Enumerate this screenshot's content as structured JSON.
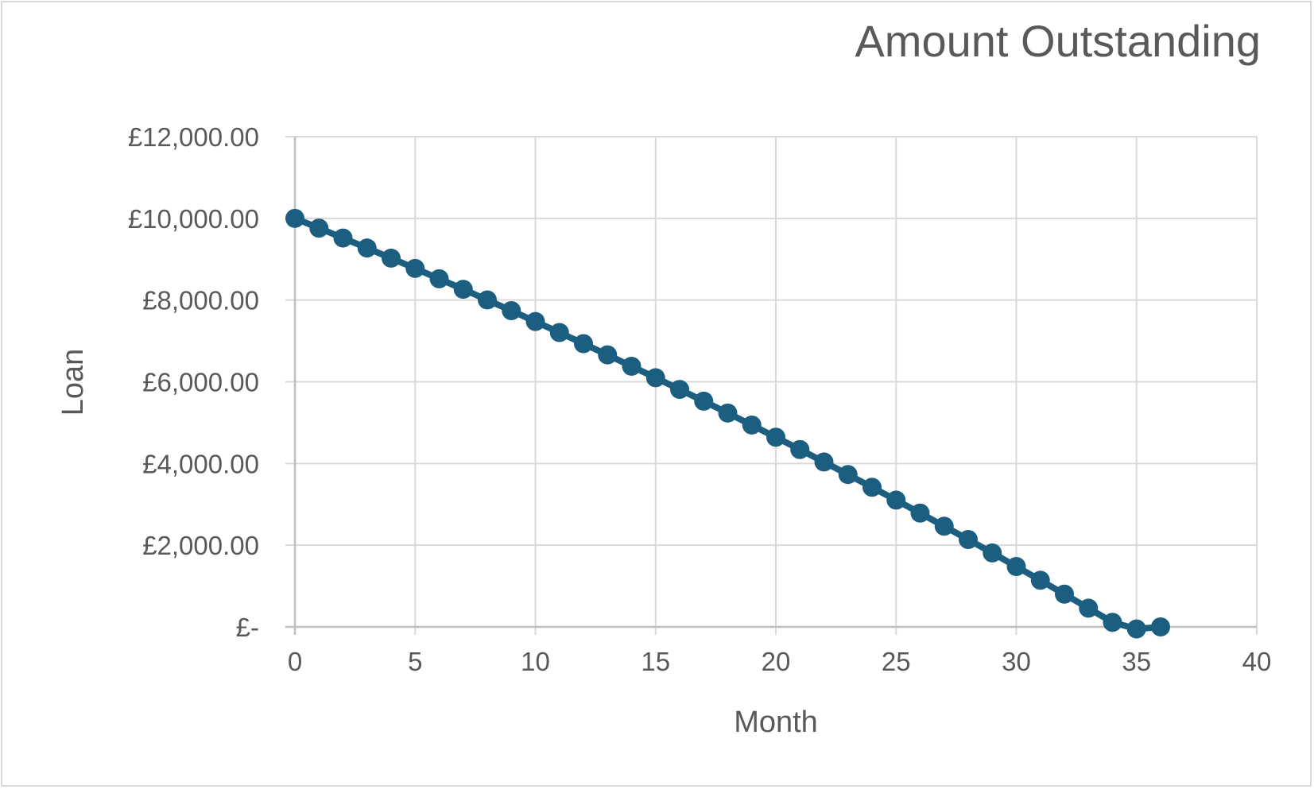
{
  "chart_data": {
    "type": "scatter",
    "title": "Amount Outstanding",
    "xlabel": "Month",
    "ylabel": "Loan",
    "xlim": [
      0,
      40
    ],
    "ylim": [
      0,
      12000
    ],
    "x_ticks": [
      0,
      5,
      10,
      15,
      20,
      25,
      30,
      35,
      40
    ],
    "x_tick_labels": [
      "0",
      "5",
      "10",
      "15",
      "20",
      "25",
      "30",
      "35",
      "40"
    ],
    "y_ticks": [
      0,
      2000,
      4000,
      6000,
      8000,
      10000,
      12000
    ],
    "y_tick_labels": [
      "£-",
      "£2,000.00",
      "£4,000.00",
      "£6,000.00",
      "£8,000.00",
      "£10,000.00",
      "£12,000.00"
    ],
    "grid": true,
    "legend": "none",
    "series": [
      {
        "color": "#1b5e80",
        "markers": true,
        "line": true,
        "x": [
          0,
          1,
          2,
          3,
          4,
          5,
          6,
          7,
          8,
          9,
          10,
          11,
          12,
          13,
          14,
          15,
          16,
          17,
          18,
          19,
          20,
          21,
          22,
          23,
          24,
          25,
          26,
          27,
          28,
          29,
          30,
          31,
          32,
          33,
          34,
          35,
          36
        ],
        "y": [
          10000,
          9761,
          9519,
          9274,
          9026,
          8775,
          8521,
          8264,
          8004,
          7741,
          7475,
          7206,
          6934,
          6659,
          6380,
          6099,
          5814,
          5526,
          5235,
          4941,
          4643,
          4342,
          4037,
          3730,
          3418,
          3104,
          2786,
          2464,
          2139,
          1810,
          1478,
          1142,
          802,
          459,
          112,
          -50,
          0
        ]
      }
    ]
  }
}
